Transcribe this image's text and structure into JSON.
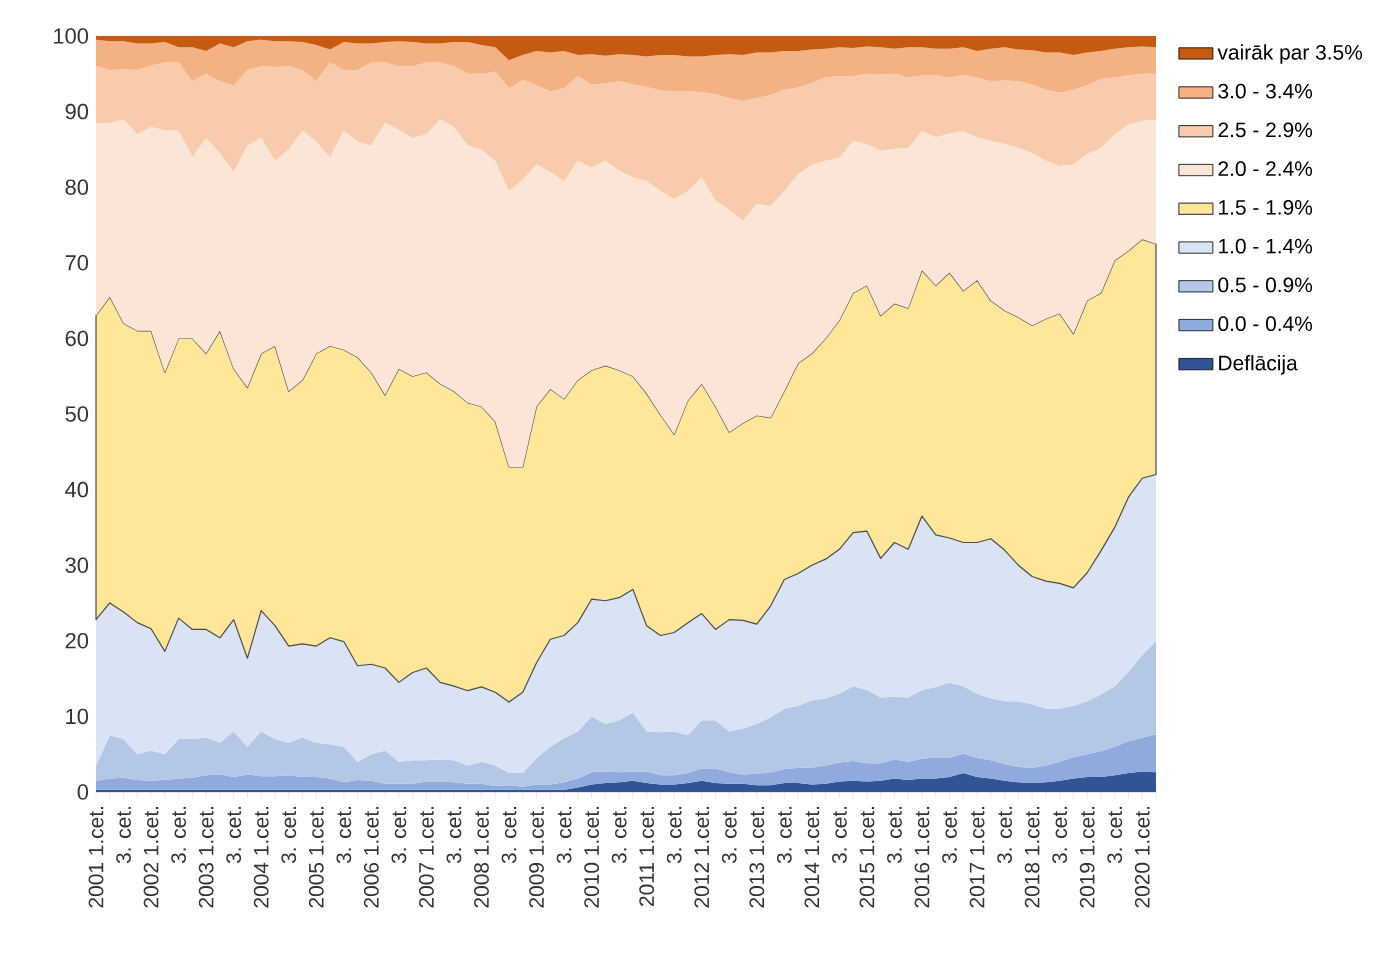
{
  "chart_data": {
    "type": "area",
    "stacked": true,
    "legend": "right",
    "categories": [
      "2001 1.cet.",
      null,
      "3. cet.",
      null,
      "2002 1.cet.",
      null,
      "3. cet.",
      null,
      "2003 1.cet.",
      null,
      "3. cet.",
      null,
      "2004 1.cet.",
      null,
      "3. cet.",
      null,
      "2005 1.cet.",
      null,
      "3. cet.",
      null,
      "2006 1.cet.",
      null,
      "3. cet.",
      null,
      "2007 1.cet.",
      null,
      "3. cet.",
      null,
      "2008 1.cet.",
      null,
      "3. cet.",
      null,
      "2009 1.cet.",
      null,
      "3. cet.",
      null,
      "2010 1.cet.",
      null,
      "3. cet.",
      null,
      "2011 1.cet.",
      null,
      "3. cet.",
      null,
      "2012 1.cet.",
      null,
      "3. cet.",
      null,
      "2013 1.cet.",
      null,
      "3. cet.",
      null,
      "2014 1.cet.",
      null,
      "3. cet.",
      null,
      "2015 1.cet.",
      null,
      "3. cet.",
      null,
      "2016 1.cet.",
      null,
      "3. cet.",
      null,
      "2017 1.cet.",
      null,
      "3. cet.",
      null,
      "2018 1.cet.",
      null,
      "3. cet.",
      null,
      "2019 1.cet.",
      null,
      "3. cet.",
      null,
      "2020 1.cet.",
      null
    ],
    "ylim": [
      0,
      100
    ],
    "yticks": [
      0,
      10,
      20,
      30,
      40,
      50,
      60,
      70,
      80,
      90,
      100
    ],
    "series": [
      {
        "name": "Deflācija",
        "color": "#2f5597",
        "values": [
          0.3,
          0.3,
          0.3,
          0.3,
          0.3,
          0.3,
          0.3,
          0.3,
          0.3,
          0.3,
          0.3,
          0.3,
          0.3,
          0.3,
          0.3,
          0.3,
          0.3,
          0.3,
          0.3,
          0.3,
          0.3,
          0.3,
          0.3,
          0.3,
          0.3,
          0.3,
          0.3,
          0.3,
          0.3,
          0.3,
          0.3,
          0.3,
          0.3,
          0.3,
          0.3,
          0.6,
          1,
          1.2,
          1.3,
          1.5,
          1.2,
          1,
          1,
          1.2,
          1.5,
          1.2,
          1.1,
          1.1,
          0.9,
          0.9,
          1.2,
          1.2,
          1,
          1.1,
          1.4,
          1.5,
          1.4,
          1.5,
          1.8,
          1.6,
          1.8,
          1.8,
          2,
          2.5,
          2,
          1.8,
          1.5,
          1.3,
          1.2,
          1.3,
          1.5,
          1.8,
          2,
          2,
          2.2,
          2.5,
          2.7,
          2.6
        ]
      },
      {
        "name": "0.0 - 0.4%",
        "color": "#8faadc",
        "values": [
          1.2,
          1.5,
          1.6,
          1.3,
          1.2,
          1.3,
          1.5,
          1.6,
          1.9,
          2,
          1.7,
          2,
          1.8,
          1.8,
          1.9,
          1.7,
          1.7,
          1.5,
          1,
          1.3,
          1.2,
          0.8,
          0.8,
          0.8,
          1.1,
          1.1,
          1,
          0.8,
          0.8,
          0.5,
          0.6,
          0.4,
          0.7,
          0.7,
          1,
          1.2,
          1.6,
          1.5,
          1.3,
          1.2,
          1.5,
          1.2,
          1.2,
          1.3,
          1.6,
          1.9,
          1.5,
          1.2,
          1.5,
          1.7,
          1.8,
          2,
          2.2,
          2.4,
          2.5,
          2.6,
          2.4,
          2.3,
          2.5,
          2.4,
          2.6,
          2.8,
          2.5,
          2.6,
          2.5,
          2.4,
          2.2,
          2,
          2,
          2.2,
          2.5,
          2.8,
          3,
          3.4,
          3.8,
          4.2,
          4.5,
          5
        ]
      },
      {
        "name": "0.5 - 0.9%",
        "color": "#b4c7e7",
        "values": [
          2,
          5.7,
          5.1,
          3.4,
          4,
          3.4,
          5.2,
          5.1,
          5,
          4.2,
          6,
          3.7,
          5.9,
          4.9,
          4.3,
          5.2,
          4.5,
          4.5,
          4.7,
          2.4,
          3.5,
          4.4,
          2.9,
          3.1,
          2.8,
          2.9,
          2.9,
          2.4,
          2.9,
          2.7,
          1.6,
          1.8,
          3.5,
          5,
          5.8,
          6.2,
          7.4,
          6.3,
          6.9,
          7.8,
          5.3,
          5.7,
          5.8,
          5,
          6.4,
          6.4,
          5.4,
          6.1,
          6.6,
          7.3,
          8,
          8.2,
          8.9,
          8.9,
          9.1,
          9.9,
          9.7,
          8.7,
          8.3,
          8.5,
          9.1,
          9.3,
          10,
          8.9,
          8.5,
          8.2,
          8.3,
          8.7,
          8.4,
          7.5,
          7,
          6.8,
          7,
          7.5,
          8,
          9.2,
          10.9,
          12.4
        ]
      },
      {
        "name": "1.0 - 1.4%",
        "color": "#dae3f3",
        "values": [
          19.3,
          17.5,
          16.8,
          17.4,
          16.1,
          13.6,
          16,
          14.5,
          14.3,
          13.9,
          14.8,
          11.7,
          16,
          15,
          12.8,
          12.4,
          12.8,
          14.1,
          13.9,
          12.7,
          11.9,
          10.9,
          10.5,
          11.6,
          12.2,
          10.2,
          9.8,
          9.9,
          9.9,
          9.7,
          9.4,
          10.7,
          12.6,
          14.2,
          13.6,
          14.4,
          15.5,
          16.3,
          16.2,
          16.3,
          14,
          12.8,
          13.1,
          14.9,
          14.1,
          12,
          14.8,
          14.3,
          13.2,
          14.7,
          17.1,
          17.5,
          17.9,
          18.4,
          19.1,
          20.3,
          21,
          18.4,
          20.4,
          19.6,
          23,
          20.1,
          19.1,
          19,
          20,
          21.1,
          20,
          18,
          16.9,
          16.9,
          16.6,
          15.6,
          17,
          19,
          21,
          23.1,
          23.4,
          22
        ]
      },
      {
        "name": "1.5 - 1.9%",
        "color": "#ffe699",
        "line_style": "solid",
        "values": [
          40.2,
          40.5,
          38.2,
          38.6,
          39.4,
          36.9,
          37,
          38.5,
          36.5,
          40.6,
          33.2,
          35.8,
          34,
          37,
          33.7,
          34.9,
          38.7,
          38.6,
          38.6,
          40.8,
          38.6,
          36.1,
          41.5,
          39.2,
          39.1,
          39.5,
          39,
          38.1,
          37.1,
          35.8,
          31.1,
          29.8,
          33.9,
          33.1,
          31.3,
          32.1,
          30.3,
          31.1,
          30.1,
          28.2,
          30.7,
          29.2,
          26.2,
          29.4,
          30.4,
          29.5,
          24.8,
          26.1,
          27.6,
          24.9,
          24.9,
          27.8,
          28,
          29.2,
          30.3,
          31.7,
          32.5,
          32.1,
          31.6,
          31.9,
          32.5,
          33,
          35.1,
          33.3,
          34.7,
          31.5,
          31.7,
          32.8,
          33.2,
          34.7,
          35.7,
          33.6,
          36,
          34.1,
          35.3,
          32.6,
          31.6,
          30.5
        ]
      },
      {
        "name": "2.0 - 2.4%",
        "color": "#fbe5d6",
        "values": [
          25.5,
          23,
          27,
          26,
          27,
          32,
          27.5,
          24,
          28.5,
          23.5,
          26,
          32,
          28.5,
          24.5,
          32,
          33,
          28,
          25,
          29,
          28.5,
          30,
          36,
          31.6,
          31.5,
          31.5,
          35,
          35,
          34,
          34,
          34.5,
          36.5,
          38,
          32,
          28.7,
          28.8,
          29,
          26.8,
          27.1,
          26.4,
          26.3,
          28.1,
          29.6,
          31.1,
          27.7,
          27.3,
          27.2,
          29.4,
          26.8,
          28,
          28,
          26.5,
          25,
          25,
          23.5,
          21.5,
          20.1,
          18.7,
          21.8,
          20.5,
          21.2,
          18.4,
          19.6,
          18.4,
          21.1,
          18.9,
          21.1,
          22,
          22.4,
          22.8,
          20.9,
          19.5,
          22.4,
          19.4,
          19.2,
          16.7,
          16.7,
          15.7,
          16.4
        ]
      },
      {
        "name": "2.5 - 2.9%",
        "color": "#f8cbad",
        "values": [
          7.5,
          7,
          6.6,
          8.5,
          8.1,
          9,
          9,
          10,
          8.5,
          9.5,
          11.5,
          10,
          9.5,
          12.4,
          11,
          8,
          8,
          12.5,
          8,
          9.5,
          11,
          8,
          8.4,
          9.5,
          9.5,
          7.5,
          8,
          9.5,
          10,
          11.8,
          13.6,
          13.2,
          10.5,
          10.7,
          12.3,
          11.2,
          11,
          10.2,
          11.8,
          12.3,
          12.5,
          13.3,
          14.3,
          13.2,
          11.3,
          14.1,
          14.8,
          15.8,
          14,
          14.7,
          13.4,
          11.5,
          10.8,
          11,
          10.8,
          8.6,
          9.3,
          10.1,
          9.9,
          9.3,
          7.4,
          8.2,
          7.4,
          7.4,
          7.9,
          7.9,
          8.4,
          8.8,
          9.1,
          9.4,
          9.7,
          9.9,
          9.1,
          9.1,
          7.5,
          6.5,
          6.2,
          6.1
        ]
      },
      {
        "name": "3.0 - 3.4%",
        "color": "#f4b183",
        "values": [
          3.5,
          3.8,
          3.7,
          3.5,
          2.9,
          2.7,
          2,
          4.5,
          3,
          5,
          5,
          3.8,
          3.5,
          3.4,
          3.3,
          3.7,
          4.8,
          1.7,
          3.7,
          3.5,
          2.5,
          2.7,
          3.3,
          3.2,
          2.5,
          2.5,
          3.2,
          4.2,
          3.8,
          3.2,
          3.7,
          3.3,
          4.5,
          5.1,
          4.9,
          2.8,
          4,
          3.7,
          3.6,
          3.9,
          4,
          4.7,
          4.8,
          4.6,
          4.7,
          5.2,
          5.8,
          6.1,
          6,
          5.6,
          5.1,
          4.8,
          4.4,
          3.8,
          3.8,
          3.7,
          3.6,
          3.6,
          3.3,
          4,
          3.7,
          3.5,
          3.8,
          3.7,
          3.5,
          4.3,
          4.4,
          4.2,
          4.5,
          4.9,
          5.3,
          4.6,
          4.3,
          3.7,
          3.8,
          3.7,
          3.6,
          3.5
        ]
      },
      {
        "name": "vairāk par 3.5%",
        "color": "#c55a11",
        "values": [
          0.5,
          0.7,
          0.7,
          1,
          1,
          0.8,
          1.5,
          1.5,
          2,
          1,
          1.5,
          0.7,
          0.5,
          0.7,
          0.7,
          0.8,
          1.2,
          1.8,
          0.8,
          1,
          1,
          0.8,
          0.7,
          0.8,
          1,
          1,
          0.8,
          0.8,
          1.2,
          1.5,
          3.2,
          2.5,
          2,
          2.2,
          2,
          2.5,
          2.4,
          2.6,
          2.4,
          2.5,
          2.7,
          2.5,
          2.5,
          2.7,
          2.7,
          2.5,
          2.4,
          2.5,
          2.2,
          2.2,
          2,
          2,
          1.8,
          1.7,
          1.5,
          1.6,
          1.4,
          1.5,
          1.7,
          1.5,
          1.5,
          1.7,
          1.7,
          1.5,
          2,
          1.7,
          1.5,
          1.8,
          1.9,
          2.2,
          2.2,
          2.5,
          2.2,
          2,
          1.7,
          1.5,
          1.4,
          1.5
        ]
      }
    ]
  }
}
